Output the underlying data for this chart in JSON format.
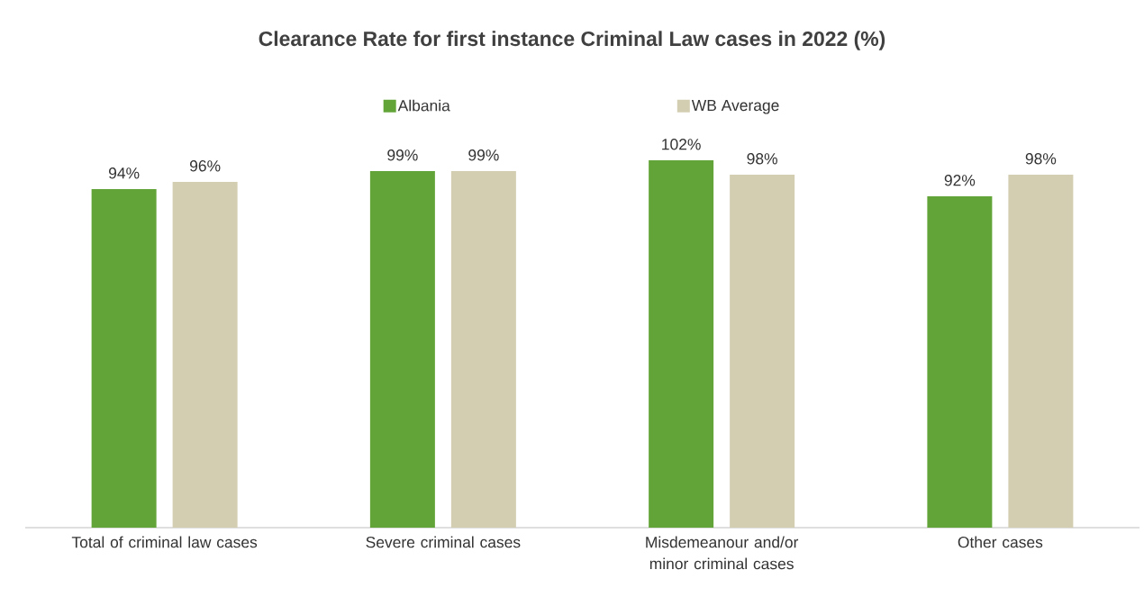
{
  "chart_data": {
    "type": "bar",
    "title": "Clearance Rate for first instance Criminal Law cases in 2022 (%)",
    "categories": [
      "Total of criminal law cases",
      "Severe criminal cases",
      "Misdemeanour and/or minor criminal cases",
      "Other cases"
    ],
    "series": [
      {
        "name": "Albania",
        "color": "#62a437",
        "values": [
          94,
          99,
          102,
          92
        ],
        "value_labels": [
          "94%",
          "99%",
          "102%",
          "92%"
        ]
      },
      {
        "name": "WB Average",
        "color": "#d3ceb2",
        "values": [
          96,
          99,
          98,
          98
        ],
        "value_labels": [
          "96%",
          "99%",
          "98%",
          "98%"
        ]
      }
    ],
    "tick_labels": "x",
    "legend": "top"
  }
}
